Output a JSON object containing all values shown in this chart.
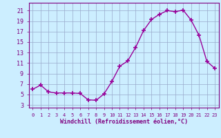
{
  "x": [
    0,
    1,
    2,
    3,
    4,
    5,
    6,
    7,
    8,
    9,
    10,
    11,
    12,
    13,
    14,
    15,
    16,
    17,
    18,
    19,
    20,
    21,
    22,
    23
  ],
  "y": [
    6.0,
    6.8,
    5.5,
    5.3,
    5.3,
    5.3,
    5.2,
    4.0,
    3.9,
    5.1,
    7.5,
    10.4,
    11.4,
    14.0,
    17.2,
    19.3,
    20.3,
    21.0,
    20.8,
    21.1,
    19.2,
    16.3,
    11.3,
    10.0
  ],
  "line_color": "#990099",
  "marker": "+",
  "marker_size": 4,
  "marker_linewidth": 1.2,
  "bg_color": "#cceeff",
  "grid_color": "#99aacc",
  "xlim": [
    -0.5,
    23.5
  ],
  "ylim": [
    2.5,
    22.5
  ],
  "xticks": [
    0,
    1,
    2,
    3,
    4,
    5,
    6,
    7,
    8,
    9,
    10,
    11,
    12,
    13,
    14,
    15,
    16,
    17,
    18,
    19,
    20,
    21,
    22,
    23
  ],
  "yticks": [
    3,
    5,
    7,
    9,
    11,
    13,
    15,
    17,
    19,
    21
  ],
  "xlabel": "Windchill (Refroidissement éolien,°C)",
  "spine_color": "#800080",
  "tick_color": "#800080",
  "label_color": "#800080",
  "xlabel_fontsize": 6.0,
  "tick_fontsize_x": 5.0,
  "tick_fontsize_y": 6.0,
  "linewidth": 1.0
}
